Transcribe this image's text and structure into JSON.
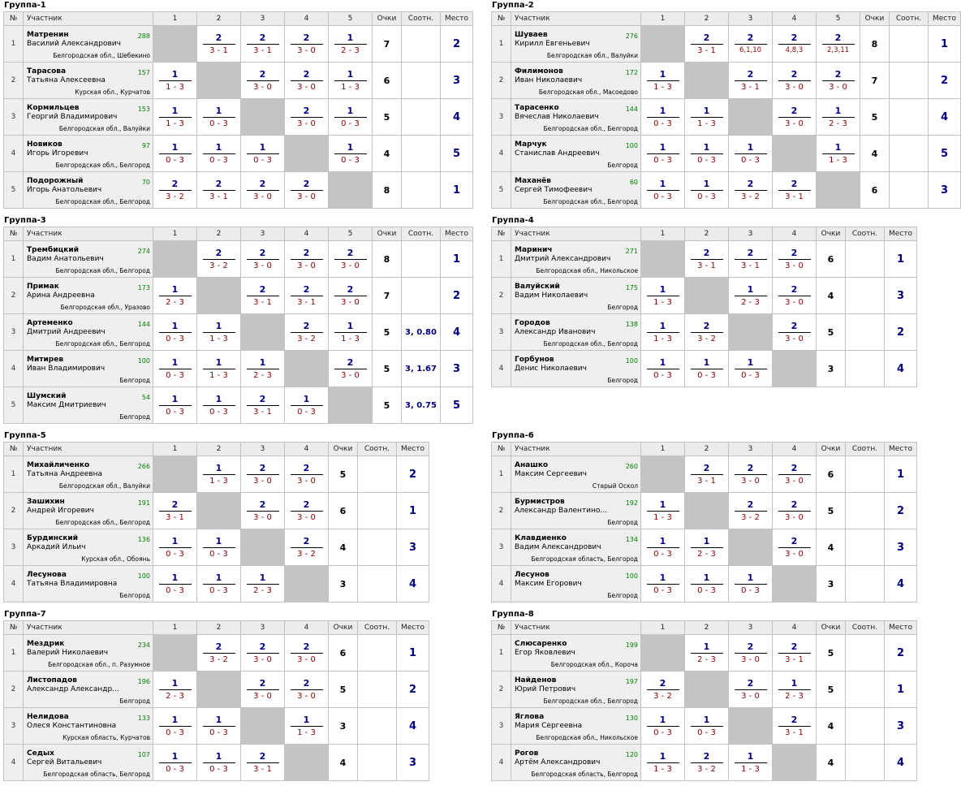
{
  "headers": {
    "num": "№",
    "name": "Участник",
    "ochki": "Очки",
    "sootn": "Соотн.",
    "mesto": "Место"
  },
  "groups": [
    {
      "title": "Группа-1",
      "rows": [
        {
          "n": "1",
          "surname": "Матренин",
          "given": "Василий Александрович",
          "rating": "288",
          "region": "Белгородская обл., Шебекино",
          "cells": [
            null,
            [
              "2",
              "3 - 1"
            ],
            [
              "2",
              "3 - 1"
            ],
            [
              "2",
              "3 - 0"
            ],
            [
              "1",
              "2 - 3"
            ]
          ],
          "points": "7",
          "sootn": "",
          "place": "2"
        },
        {
          "n": "2",
          "surname": "Тарасова",
          "given": "Татьяна Алексеевна",
          "rating": "157",
          "region": "Курская обл., Курчатов",
          "cells": [
            [
              "1",
              "1 - 3"
            ],
            null,
            [
              "2",
              "3 - 0"
            ],
            [
              "2",
              "3 - 0"
            ],
            [
              "1",
              "1 - 3"
            ]
          ],
          "points": "6",
          "sootn": "",
          "place": "3"
        },
        {
          "n": "3",
          "surname": "Кормильцев",
          "given": "Георгий Владимирович",
          "rating": "153",
          "region": "Белгородская обл., Валуйки",
          "cells": [
            [
              "1",
              "1 - 3"
            ],
            [
              "1",
              "0 - 3"
            ],
            null,
            [
              "2",
              "3 - 0"
            ],
            [
              "1",
              "0 - 3"
            ]
          ],
          "points": "5",
          "sootn": "",
          "place": "4"
        },
        {
          "n": "4",
          "surname": "Новиков",
          "given": "Игорь Игоревич",
          "rating": "97",
          "region": "Белгородская обл., Белгород",
          "cells": [
            [
              "1",
              "0 - 3"
            ],
            [
              "1",
              "0 - 3"
            ],
            [
              "1",
              "0 - 3"
            ],
            null,
            [
              "1",
              "0 - 3"
            ]
          ],
          "points": "4",
          "sootn": "",
          "place": "5"
        },
        {
          "n": "5",
          "surname": "Подорожный",
          "given": "Игорь Анатольевич",
          "rating": "70",
          "region": "Белгородская обл., Белгород",
          "cells": [
            [
              "2",
              "3 - 2"
            ],
            [
              "2",
              "3 - 1"
            ],
            [
              "2",
              "3 - 0"
            ],
            [
              "2",
              "3 - 0"
            ],
            null
          ],
          "points": "8",
          "sootn": "",
          "place": "1"
        }
      ]
    },
    {
      "title": "Группа-2",
      "rows": [
        {
          "n": "1",
          "surname": "Шуваев",
          "given": "Кирилл Евгеньевич",
          "rating": "276",
          "region": "Белгородская обл., Валуйки",
          "cells": [
            null,
            [
              "2",
              "3 - 1"
            ],
            [
              "2",
              "6,1,10"
            ],
            [
              "2",
              "4,8,3"
            ],
            [
              "2",
              "2,3,11"
            ]
          ],
          "points": "8",
          "sootn": "",
          "place": "1"
        },
        {
          "n": "2",
          "surname": "Филимонов",
          "given": "Иван Николаевич",
          "rating": "172",
          "region": "Белгородская обл., Масоедово",
          "cells": [
            [
              "1",
              "1 - 3"
            ],
            null,
            [
              "2",
              "3 - 1"
            ],
            [
              "2",
              "3 - 0"
            ],
            [
              "2",
              "3 - 0"
            ]
          ],
          "points": "7",
          "sootn": "",
          "place": "2"
        },
        {
          "n": "3",
          "surname": "Тарасенко",
          "given": "Вячеслав Николаевич",
          "rating": "144",
          "region": "Белгородская обл., Белгород",
          "cells": [
            [
              "1",
              "0 - 3"
            ],
            [
              "1",
              "1 - 3"
            ],
            null,
            [
              "2",
              "3 - 0"
            ],
            [
              "1",
              "2 - 3"
            ]
          ],
          "points": "5",
          "sootn": "",
          "place": "4"
        },
        {
          "n": "4",
          "surname": "Марчук",
          "given": "Станислав Андреевич",
          "rating": "100",
          "region": "Белгород",
          "cells": [
            [
              "1",
              "0 - 3"
            ],
            [
              "1",
              "0 - 3"
            ],
            [
              "1",
              "0 - 3"
            ],
            null,
            [
              "1",
              "1 - 3"
            ]
          ],
          "points": "4",
          "sootn": "",
          "place": "5"
        },
        {
          "n": "5",
          "surname": "Маханёв",
          "given": "Сергей Тимофеевич",
          "rating": "60",
          "region": "Белгородская обл., Белгород",
          "cells": [
            [
              "1",
              "0 - 3"
            ],
            [
              "1",
              "0 - 3"
            ],
            [
              "2",
              "3 - 2"
            ],
            [
              "2",
              "3 - 1"
            ],
            null
          ],
          "points": "6",
          "sootn": "",
          "place": "3"
        }
      ]
    },
    {
      "title": "Группа-3",
      "rows": [
        {
          "n": "1",
          "surname": "Трембицкий",
          "given": "Вадим Анатольевич",
          "rating": "274",
          "region": "Белгородская обл., Белгород",
          "cells": [
            null,
            [
              "2",
              "3 - 2"
            ],
            [
              "2",
              "3 - 0"
            ],
            [
              "2",
              "3 - 0"
            ],
            [
              "2",
              "3 - 0"
            ]
          ],
          "points": "8",
          "sootn": "",
          "place": "1"
        },
        {
          "n": "2",
          "surname": "Примак",
          "given": "Арина Андреевна",
          "rating": "173",
          "region": "Белгородская обл., Уразово",
          "cells": [
            [
              "1",
              "2 - 3"
            ],
            null,
            [
              "2",
              "3 - 1"
            ],
            [
              "2",
              "3 - 1"
            ],
            [
              "2",
              "3 - 0"
            ]
          ],
          "points": "7",
          "sootn": "",
          "place": "2"
        },
        {
          "n": "3",
          "surname": "Артеменко",
          "given": "Дмитрий Андреевич",
          "rating": "144",
          "region": "Белгородская обл., Белгород",
          "cells": [
            [
              "1",
              "0 - 3"
            ],
            [
              "1",
              "1 - 3"
            ],
            null,
            [
              "2",
              "3 - 2"
            ],
            [
              "1",
              "1 - 3"
            ]
          ],
          "points": "5",
          "sootn": "3, 0.80",
          "place": "4"
        },
        {
          "n": "4",
          "surname": "Митирев",
          "given": "Иван Владимирович",
          "rating": "100",
          "region": "Белгород",
          "cells": [
            [
              "1",
              "0 - 3"
            ],
            [
              "1",
              "1 - 3"
            ],
            [
              "1",
              "2 - 3"
            ],
            null,
            [
              "2",
              "3 - 0"
            ]
          ],
          "points": "5",
          "sootn": "3, 1.67",
          "place": "3"
        },
        {
          "n": "5",
          "surname": "Шумский",
          "given": "Максим Дмитриевич",
          "rating": "54",
          "region": "Белгород",
          "cells": [
            [
              "1",
              "0 - 3"
            ],
            [
              "1",
              "0 - 3"
            ],
            [
              "2",
              "3 - 1"
            ],
            [
              "1",
              "0 - 3"
            ],
            null
          ],
          "points": "5",
          "sootn": "3, 0.75",
          "place": "5"
        }
      ]
    },
    {
      "title": "Группа-4",
      "rows": [
        {
          "n": "1",
          "surname": "Маринич",
          "given": "Дмитрий Александрович",
          "rating": "271",
          "region": "Белгородская обл., Никольское",
          "cells": [
            null,
            [
              "2",
              "3 - 1"
            ],
            [
              "2",
              "3 - 1"
            ],
            [
              "2",
              "3 - 0"
            ]
          ],
          "points": "6",
          "sootn": "",
          "place": "1"
        },
        {
          "n": "2",
          "surname": "Валуйский",
          "given": "Вадим Николаевич",
          "rating": "175",
          "region": "Белгород",
          "cells": [
            [
              "1",
              "1 - 3"
            ],
            null,
            [
              "1",
              "2 - 3"
            ],
            [
              "2",
              "3 - 0"
            ]
          ],
          "points": "4",
          "sootn": "",
          "place": "3"
        },
        {
          "n": "3",
          "surname": "Городов",
          "given": "Александр Иванович",
          "rating": "138",
          "region": "Белгородская обл., Белгород",
          "cells": [
            [
              "1",
              "1 - 3"
            ],
            [
              "2",
              "3 - 2"
            ],
            null,
            [
              "2",
              "3 - 0"
            ]
          ],
          "points": "5",
          "sootn": "",
          "place": "2"
        },
        {
          "n": "4",
          "surname": "Горбунов",
          "given": "Денис Николаевич",
          "rating": "100",
          "region": "Белгород",
          "cells": [
            [
              "1",
              "0 - 3"
            ],
            [
              "1",
              "0 - 3"
            ],
            [
              "1",
              "0 - 3"
            ],
            null
          ],
          "points": "3",
          "sootn": "",
          "place": "4"
        }
      ]
    },
    {
      "title": "Группа-5",
      "rows": [
        {
          "n": "1",
          "surname": "Михайличенко",
          "given": "Татьяна Андреевна",
          "rating": "266",
          "region": "Белгородская обл., Валуйки",
          "cells": [
            null,
            [
              "1",
              "1 - 3"
            ],
            [
              "2",
              "3 - 0"
            ],
            [
              "2",
              "3 - 0"
            ]
          ],
          "points": "5",
          "sootn": "",
          "place": "2"
        },
        {
          "n": "2",
          "surname": "Зашихин",
          "given": "Андрей Игоревич",
          "rating": "191",
          "region": "Белгородская обл., Белгород",
          "cells": [
            [
              "2",
              "3 - 1"
            ],
            null,
            [
              "2",
              "3 - 0"
            ],
            [
              "2",
              "3 - 0"
            ]
          ],
          "points": "6",
          "sootn": "",
          "place": "1"
        },
        {
          "n": "3",
          "surname": "Бурдинский",
          "given": "Аркадий Ильич",
          "rating": "136",
          "region": "Курская обл., Обоянь",
          "cells": [
            [
              "1",
              "0 - 3"
            ],
            [
              "1",
              "0 - 3"
            ],
            null,
            [
              "2",
              "3 - 2"
            ]
          ],
          "points": "4",
          "sootn": "",
          "place": "3"
        },
        {
          "n": "4",
          "surname": "Лесунова",
          "given": "Татьяна Владимировна",
          "rating": "100",
          "region": "Белгород",
          "cells": [
            [
              "1",
              "0 - 3"
            ],
            [
              "1",
              "0 - 3"
            ],
            [
              "1",
              "2 - 3"
            ],
            null
          ],
          "points": "3",
          "sootn": "",
          "place": "4"
        }
      ]
    },
    {
      "title": "Группа-6",
      "rows": [
        {
          "n": "1",
          "surname": "Анашко",
          "given": "Максим Сергеевич",
          "rating": "260",
          "region": "Старый Оскол",
          "cells": [
            null,
            [
              "2",
              "3 - 1"
            ],
            [
              "2",
              "3 - 0"
            ],
            [
              "2",
              "3 - 0"
            ]
          ],
          "points": "6",
          "sootn": "",
          "place": "1"
        },
        {
          "n": "2",
          "surname": "Бурмистров",
          "given": "Александр Валентино...",
          "rating": "192",
          "region": "Белгород",
          "cells": [
            [
              "1",
              "1 - 3"
            ],
            null,
            [
              "2",
              "3 - 2"
            ],
            [
              "2",
              "3 - 0"
            ]
          ],
          "points": "5",
          "sootn": "",
          "place": "2"
        },
        {
          "n": "3",
          "surname": "Клавдиенко",
          "given": "Вадим Александрович",
          "rating": "134",
          "region": "Белгородская область, Белгород",
          "cells": [
            [
              "1",
              "0 - 3"
            ],
            [
              "1",
              "2 - 3"
            ],
            null,
            [
              "2",
              "3 - 0"
            ]
          ],
          "points": "4",
          "sootn": "",
          "place": "3"
        },
        {
          "n": "4",
          "surname": "Лесунов",
          "given": "Максим Егорович",
          "rating": "100",
          "region": "Белгород",
          "cells": [
            [
              "1",
              "0 - 3"
            ],
            [
              "1",
              "0 - 3"
            ],
            [
              "1",
              "0 - 3"
            ],
            null
          ],
          "points": "3",
          "sootn": "",
          "place": "4"
        }
      ]
    },
    {
      "title": "Группа-7",
      "rows": [
        {
          "n": "1",
          "surname": "Мездрик",
          "given": "Валерий Николаевич",
          "rating": "234",
          "region": "Белгородская обл., п. Разумное",
          "cells": [
            null,
            [
              "2",
              "3 - 2"
            ],
            [
              "2",
              "3 - 0"
            ],
            [
              "2",
              "3 - 0"
            ]
          ],
          "points": "6",
          "sootn": "",
          "place": "1"
        },
        {
          "n": "2",
          "surname": "Листопадов",
          "given": "Александр Александр...",
          "rating": "196",
          "region": "Белгород",
          "cells": [
            [
              "1",
              "2 - 3"
            ],
            null,
            [
              "2",
              "3 - 0"
            ],
            [
              "2",
              "3 - 0"
            ]
          ],
          "points": "5",
          "sootn": "",
          "place": "2"
        },
        {
          "n": "3",
          "surname": "Нелидова",
          "given": "Олеся Константиновна",
          "rating": "133",
          "region": "Курская область, Курчатов",
          "cells": [
            [
              "1",
              "0 - 3"
            ],
            [
              "1",
              "0 - 3"
            ],
            null,
            [
              "1",
              "1 - 3"
            ]
          ],
          "points": "3",
          "sootn": "",
          "place": "4"
        },
        {
          "n": "4",
          "surname": "Седых",
          "given": "Сергей Витальевич",
          "rating": "107",
          "region": "Белгородская область, Белгород",
          "cells": [
            [
              "1",
              "0 - 3"
            ],
            [
              "1",
              "0 - 3"
            ],
            [
              "2",
              "3 - 1"
            ],
            null
          ],
          "points": "4",
          "sootn": "",
          "place": "3"
        }
      ]
    },
    {
      "title": "Группа-8",
      "rows": [
        {
          "n": "1",
          "surname": "Слюсаренко",
          "given": "Егор Яковлевич",
          "rating": "199",
          "region": "Белгородская обл., Короча",
          "cells": [
            null,
            [
              "1",
              "2 - 3"
            ],
            [
              "2",
              "3 - 0"
            ],
            [
              "2",
              "3 - 1"
            ]
          ],
          "points": "5",
          "sootn": "",
          "place": "2"
        },
        {
          "n": "2",
          "surname": "Найденов",
          "given": "Юрий Петрович",
          "rating": "197",
          "region": "Белгородская обл., Белгород",
          "cells": [
            [
              "2",
              "3 - 2"
            ],
            null,
            [
              "2",
              "3 - 0"
            ],
            [
              "1",
              "2 - 3"
            ]
          ],
          "points": "5",
          "sootn": "",
          "place": "1"
        },
        {
          "n": "3",
          "surname": "Яглова",
          "given": "Мария Сергеевна",
          "rating": "130",
          "region": "Белгородская обл., Никольское",
          "cells": [
            [
              "1",
              "0 - 3"
            ],
            [
              "1",
              "0 - 3"
            ],
            null,
            [
              "2",
              "3 - 1"
            ]
          ],
          "points": "4",
          "sootn": "",
          "place": "3"
        },
        {
          "n": "4",
          "surname": "Рогов",
          "given": "Артём Александрович",
          "rating": "120",
          "region": "Белгородская область, Белгород",
          "cells": [
            [
              "1",
              "1 - 3"
            ],
            [
              "2",
              "3 - 2"
            ],
            [
              "1",
              "1 - 3"
            ],
            null
          ],
          "points": "4",
          "sootn": "",
          "place": "4"
        }
      ]
    }
  ]
}
